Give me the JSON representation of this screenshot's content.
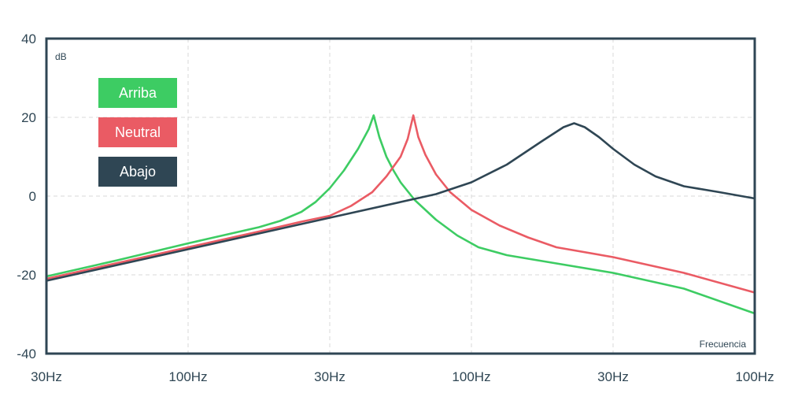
{
  "chart_data": {
    "type": "line",
    "ylabel": "dB",
    "xlabel": "Frecuencia",
    "ylim": [
      -40,
      40
    ],
    "yticks": [
      "40",
      "20",
      "0",
      "-20",
      "-40"
    ],
    "yticks_values": [
      40,
      20,
      0,
      -20,
      -40
    ],
    "xticks": [
      "30Hz",
      "100Hz",
      "30Hz",
      "100Hz",
      "30Hz",
      "100Hz"
    ],
    "grid": true,
    "legend_position": "top-left",
    "series": [
      {
        "name": "Arriba",
        "color": "#3dcc63",
        "points": [
          [
            0.0,
            -20.4
          ],
          [
            0.1,
            -16.3
          ],
          [
            0.2,
            -12.0
          ],
          [
            0.3,
            -7.9
          ],
          [
            0.33,
            -6.3
          ],
          [
            0.36,
            -4.0
          ],
          [
            0.38,
            -1.5
          ],
          [
            0.4,
            2.0
          ],
          [
            0.42,
            6.5
          ],
          [
            0.44,
            12.0
          ],
          [
            0.455,
            17.0
          ],
          [
            0.462,
            20.5
          ],
          [
            0.47,
            15.0
          ],
          [
            0.48,
            10.0
          ],
          [
            0.49,
            6.5
          ],
          [
            0.5,
            3.5
          ],
          [
            0.52,
            -1.0
          ],
          [
            0.55,
            -6.0
          ],
          [
            0.58,
            -10.0
          ],
          [
            0.61,
            -13.0
          ],
          [
            0.65,
            -15.0
          ],
          [
            0.7,
            -16.5
          ],
          [
            0.8,
            -19.5
          ],
          [
            0.9,
            -23.5
          ],
          [
            1.0,
            -29.8
          ]
        ]
      },
      {
        "name": "Neutral",
        "color": "#ea5b64",
        "points": [
          [
            0.0,
            -21.0
          ],
          [
            0.1,
            -17.0
          ],
          [
            0.2,
            -13.0
          ],
          [
            0.3,
            -9.0
          ],
          [
            0.36,
            -6.5
          ],
          [
            0.4,
            -5.0
          ],
          [
            0.43,
            -2.5
          ],
          [
            0.46,
            1.0
          ],
          [
            0.48,
            5.0
          ],
          [
            0.5,
            10.0
          ],
          [
            0.51,
            14.5
          ],
          [
            0.518,
            20.5
          ],
          [
            0.525,
            15.0
          ],
          [
            0.535,
            10.5
          ],
          [
            0.55,
            5.5
          ],
          [
            0.57,
            1.0
          ],
          [
            0.6,
            -3.5
          ],
          [
            0.64,
            -7.5
          ],
          [
            0.68,
            -10.5
          ],
          [
            0.72,
            -13.0
          ],
          [
            0.8,
            -15.5
          ],
          [
            0.9,
            -19.5
          ],
          [
            1.0,
            -24.5
          ]
        ]
      },
      {
        "name": "Abajo",
        "color": "#2f4654",
        "points": [
          [
            0.0,
            -21.5
          ],
          [
            0.1,
            -17.5
          ],
          [
            0.2,
            -13.5
          ],
          [
            0.3,
            -9.5
          ],
          [
            0.4,
            -5.5
          ],
          [
            0.5,
            -1.5
          ],
          [
            0.55,
            0.5
          ],
          [
            0.6,
            3.5
          ],
          [
            0.65,
            8.0
          ],
          [
            0.7,
            14.0
          ],
          [
            0.73,
            17.5
          ],
          [
            0.745,
            18.5
          ],
          [
            0.76,
            17.5
          ],
          [
            0.78,
            15.0
          ],
          [
            0.8,
            12.0
          ],
          [
            0.83,
            8.0
          ],
          [
            0.86,
            5.0
          ],
          [
            0.9,
            2.5
          ],
          [
            0.95,
            1.0
          ],
          [
            1.0,
            -0.6
          ]
        ]
      }
    ]
  }
}
